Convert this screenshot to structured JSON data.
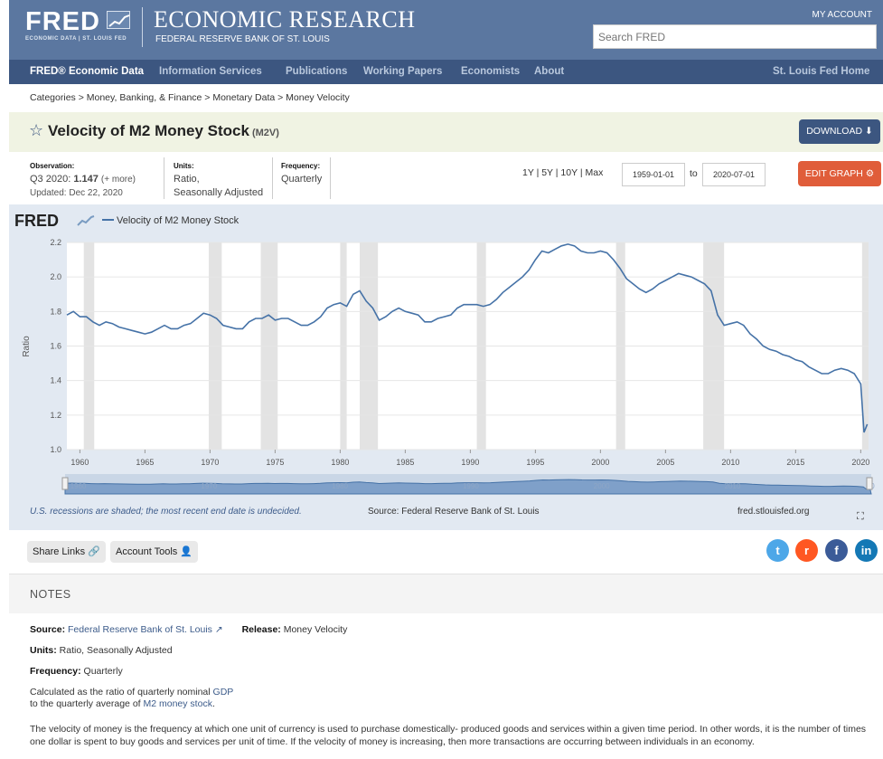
{
  "header": {
    "logo_text": "FRED",
    "logo_sub": "ECONOMIC DATA  |  ST. LOUIS FED",
    "title": "ECONOMIC RESEARCH",
    "subtitle": "FEDERAL RESERVE BANK OF ST. LOUIS",
    "my_account": "MY ACCOUNT",
    "search_placeholder": "Search FRED"
  },
  "nav": {
    "primary": "FRED® Economic Data",
    "items": [
      "Information Services",
      "Publications",
      "Working Papers",
      "Economists",
      "About"
    ],
    "right": "St. Louis Fed Home"
  },
  "breadcrumb": "Categories > Money, Banking, & Finance > Monetary Data > Money Velocity",
  "series": {
    "title": "Velocity of M2 Money Stock",
    "code": "(M2V)",
    "download_label": "DOWNLOAD",
    "observation_label": "Observation:",
    "observation_period": "Q3 2020:",
    "observation_value": "1.147",
    "observation_more": "(+ more)",
    "updated": "Updated: Dec 22, 2020",
    "units_label": "Units:",
    "units_line1": "Ratio,",
    "units_line2": "Seasonally Adjusted",
    "frequency_label": "Frequency:",
    "frequency": "Quarterly"
  },
  "controls": {
    "range_links": "1Y | 5Y | 10Y | Max",
    "start_date": "1959-01-01",
    "to": "to",
    "end_date": "2020-07-01",
    "edit_graph_label": "EDIT GRAPH"
  },
  "chart_data": {
    "type": "line",
    "legend_brand": "FRED",
    "series": [
      {
        "name": "Velocity of M2 Money Stock",
        "color": "#4572a7",
        "points": [
          [
            1959.0,
            1.78
          ],
          [
            1959.5,
            1.8
          ],
          [
            1960.0,
            1.77
          ],
          [
            1960.5,
            1.77
          ],
          [
            1961.0,
            1.74
          ],
          [
            1961.5,
            1.72
          ],
          [
            1962.0,
            1.74
          ],
          [
            1962.5,
            1.73
          ],
          [
            1963.0,
            1.71
          ],
          [
            1963.5,
            1.7
          ],
          [
            1964.0,
            1.69
          ],
          [
            1964.5,
            1.68
          ],
          [
            1965.0,
            1.67
          ],
          [
            1965.5,
            1.68
          ],
          [
            1966.0,
            1.7
          ],
          [
            1966.5,
            1.72
          ],
          [
            1967.0,
            1.7
          ],
          [
            1967.5,
            1.7
          ],
          [
            1968.0,
            1.72
          ],
          [
            1968.5,
            1.73
          ],
          [
            1969.0,
            1.76
          ],
          [
            1969.5,
            1.79
          ],
          [
            1970.0,
            1.78
          ],
          [
            1970.5,
            1.76
          ],
          [
            1971.0,
            1.72
          ],
          [
            1971.5,
            1.71
          ],
          [
            1972.0,
            1.7
          ],
          [
            1972.5,
            1.7
          ],
          [
            1973.0,
            1.74
          ],
          [
            1973.5,
            1.76
          ],
          [
            1974.0,
            1.76
          ],
          [
            1974.5,
            1.78
          ],
          [
            1975.0,
            1.75
          ],
          [
            1975.5,
            1.76
          ],
          [
            1976.0,
            1.76
          ],
          [
            1976.5,
            1.74
          ],
          [
            1977.0,
            1.72
          ],
          [
            1977.5,
            1.72
          ],
          [
            1978.0,
            1.74
          ],
          [
            1978.5,
            1.77
          ],
          [
            1979.0,
            1.82
          ],
          [
            1979.5,
            1.84
          ],
          [
            1980.0,
            1.85
          ],
          [
            1980.5,
            1.83
          ],
          [
            1981.0,
            1.9
          ],
          [
            1981.5,
            1.92
          ],
          [
            1982.0,
            1.86
          ],
          [
            1982.5,
            1.82
          ],
          [
            1983.0,
            1.75
          ],
          [
            1983.5,
            1.77
          ],
          [
            1984.0,
            1.8
          ],
          [
            1984.5,
            1.82
          ],
          [
            1985.0,
            1.8
          ],
          [
            1985.5,
            1.79
          ],
          [
            1986.0,
            1.78
          ],
          [
            1986.5,
            1.74
          ],
          [
            1987.0,
            1.74
          ],
          [
            1987.5,
            1.76
          ],
          [
            1988.0,
            1.77
          ],
          [
            1988.5,
            1.78
          ],
          [
            1989.0,
            1.82
          ],
          [
            1989.5,
            1.84
          ],
          [
            1990.0,
            1.84
          ],
          [
            1990.5,
            1.84
          ],
          [
            1991.0,
            1.83
          ],
          [
            1991.5,
            1.84
          ],
          [
            1992.0,
            1.87
          ],
          [
            1992.5,
            1.91
          ],
          [
            1993.0,
            1.94
          ],
          [
            1993.5,
            1.97
          ],
          [
            1994.0,
            2.0
          ],
          [
            1994.5,
            2.04
          ],
          [
            1995.0,
            2.1
          ],
          [
            1995.5,
            2.15
          ],
          [
            1996.0,
            2.14
          ],
          [
            1996.5,
            2.16
          ],
          [
            1997.0,
            2.18
          ],
          [
            1997.5,
            2.19
          ],
          [
            1998.0,
            2.18
          ],
          [
            1998.5,
            2.15
          ],
          [
            1999.0,
            2.14
          ],
          [
            1999.5,
            2.14
          ],
          [
            2000.0,
            2.15
          ],
          [
            2000.5,
            2.14
          ],
          [
            2001.0,
            2.1
          ],
          [
            2001.5,
            2.05
          ],
          [
            2002.0,
            1.99
          ],
          [
            2002.5,
            1.96
          ],
          [
            2003.0,
            1.93
          ],
          [
            2003.5,
            1.91
          ],
          [
            2004.0,
            1.93
          ],
          [
            2004.5,
            1.96
          ],
          [
            2005.0,
            1.98
          ],
          [
            2005.5,
            2.0
          ],
          [
            2006.0,
            2.02
          ],
          [
            2006.5,
            2.01
          ],
          [
            2007.0,
            2.0
          ],
          [
            2007.5,
            1.98
          ],
          [
            2008.0,
            1.96
          ],
          [
            2008.5,
            1.92
          ],
          [
            2009.0,
            1.78
          ],
          [
            2009.5,
            1.72
          ],
          [
            2010.0,
            1.73
          ],
          [
            2010.5,
            1.74
          ],
          [
            2011.0,
            1.72
          ],
          [
            2011.5,
            1.67
          ],
          [
            2012.0,
            1.64
          ],
          [
            2012.5,
            1.6
          ],
          [
            2013.0,
            1.58
          ],
          [
            2013.5,
            1.57
          ],
          [
            2014.0,
            1.55
          ],
          [
            2014.5,
            1.54
          ],
          [
            2015.0,
            1.52
          ],
          [
            2015.5,
            1.51
          ],
          [
            2016.0,
            1.48
          ],
          [
            2016.5,
            1.46
          ],
          [
            2017.0,
            1.44
          ],
          [
            2017.5,
            1.44
          ],
          [
            2018.0,
            1.46
          ],
          [
            2018.5,
            1.47
          ],
          [
            2019.0,
            1.46
          ],
          [
            2019.5,
            1.44
          ],
          [
            2020.0,
            1.38
          ],
          [
            2020.25,
            1.1
          ],
          [
            2020.5,
            1.147
          ]
        ]
      }
    ],
    "recessions": [
      [
        1960.3,
        1961.1
      ],
      [
        1969.9,
        1970.9
      ],
      [
        1973.9,
        1975.2
      ],
      [
        1980.0,
        1980.5
      ],
      [
        1981.5,
        1982.9
      ],
      [
        1990.5,
        1991.2
      ],
      [
        2001.2,
        2001.9
      ],
      [
        2007.9,
        2009.5
      ],
      [
        2020.1,
        2020.6
      ]
    ],
    "ylabel": "Ratio",
    "x_ticks": [
      1960,
      1965,
      1970,
      1975,
      1980,
      1985,
      1990,
      1995,
      2000,
      2005,
      2010,
      2015,
      2020
    ],
    "y_ticks": [
      "1.0",
      "1.2",
      "1.4",
      "1.6",
      "1.8",
      "2.0",
      "2.2"
    ],
    "xlim": [
      1959,
      2020.6
    ],
    "ylim": [
      1.0,
      2.2
    ],
    "grid": true,
    "legend_position": "top-left",
    "navigator_labels": [
      "1960",
      "1970",
      "1980",
      "1990",
      "2000",
      "2010",
      "20"
    ]
  },
  "chart_footer": {
    "recession_note": "U.S. recessions are shaded; the most recent end date is undecided.",
    "source": "Source: Federal Reserve Bank of St. Louis",
    "site": "fred.stlouisfed.org"
  },
  "share": {
    "share_links": "Share Links",
    "account_tools": "Account Tools",
    "social": [
      {
        "name": "twitter",
        "glyph": "t",
        "color": "#4da7e8"
      },
      {
        "name": "reddit",
        "glyph": "r",
        "color": "#ff5722"
      },
      {
        "name": "facebook",
        "glyph": "f",
        "color": "#3b5b98"
      },
      {
        "name": "linkedin",
        "glyph": "in",
        "color": "#1478b5"
      }
    ]
  },
  "notes": {
    "title": "NOTES",
    "source_label": "Source:",
    "source_value": "Federal Reserve Bank of St. Louis",
    "release_label": "Release:",
    "release_value": "Money Velocity",
    "units_label": "Units:",
    "units_value": "Ratio, Seasonally Adjusted",
    "frequency_label": "Frequency:",
    "frequency_value": "Quarterly",
    "calc_line1_a": "Calculated as the ratio of quarterly nominal",
    "calc_line1_link": "GDP",
    "calc_line2_a": "to the quarterly average of",
    "calc_line2_link": "M2 money stock",
    "calc_line2_b": ".",
    "description": "The velocity of money is the frequency at which one unit of currency is used to purchase domestically- produced goods and services within a given time period. In other words, it is the number of times one dollar is spent to buy goods and services per unit of time. If the velocity of money is increasing, then more transactions are occurring between individuals in an economy."
  }
}
